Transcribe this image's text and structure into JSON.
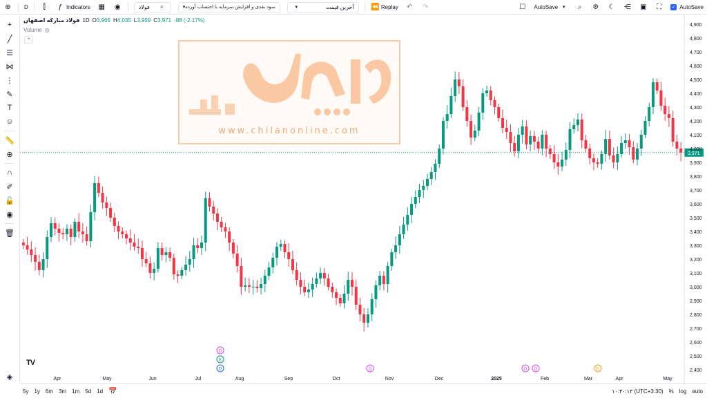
{
  "topbar": {
    "symbol_short": "D",
    "indicators_label": "Indicators",
    "symbol_search": "فولاد",
    "strategy_dropdown": "سود نقدی و افزایش سرمایه با احتساب آورده",
    "price_type_dropdown": "آخرین قیمت",
    "replay_label": "Replay",
    "autosave_label": "AutoSave",
    "autosave_right_label": "AutoSave"
  },
  "legend": {
    "symbol_name": "فولاد مبارکه اصفهان",
    "timeframe": "1D",
    "open_key": "O",
    "open": "3,965",
    "high_key": "H",
    "high": "4,035",
    "low_key": "L",
    "low": "3,959",
    "close_key": "C",
    "close": "3,971",
    "change": "-88 (-2.17%)",
    "volume_label": "Volume"
  },
  "watermark": {
    "url": "www.chilanonline.com"
  },
  "price_axis": {
    "ticks": [
      "4,900",
      "4,800",
      "4,700",
      "4,600",
      "4,500",
      "4,400",
      "4,300",
      "4,200",
      "4,100",
      "4,000",
      "3,900",
      "3,800",
      "3,700",
      "3,600",
      "3,500",
      "3,400",
      "3,300",
      "3,200",
      "3,100",
      "3,000",
      "2,900",
      "2,800",
      "2,700",
      "2,600",
      "2,500",
      "2,400"
    ],
    "last_price_label": "3,971"
  },
  "time_axis": {
    "ticks": [
      "Apr",
      "May",
      "Jun",
      "Jul",
      "Aug",
      "Sep",
      "Oct",
      "Nov",
      "Dec",
      "2025",
      "Feb",
      "Mar",
      "Apr",
      "May"
    ]
  },
  "bottombar": {
    "ranges": [
      "5y",
      "1y",
      "6m",
      "3m",
      "1m",
      "5d",
      "1d"
    ],
    "clock": "۱۰:۴۰:۱۳ (UTC+3:30)",
    "percent_label": "%",
    "log_label": "log",
    "auto_label": "auto"
  },
  "colors": {
    "up": "#089981",
    "down": "#f23645",
    "last_price_line": "#089981"
  },
  "chart_data": {
    "type": "candlestick",
    "ylim": [
      2400,
      4900
    ],
    "last_price": 3971,
    "series": [
      {
        "name": "",
        "values": [
          3300,
          3270,
          3230,
          3180,
          3120,
          3200,
          3360,
          3460,
          3420,
          3390,
          3380,
          3420,
          3360,
          3470,
          3400,
          3380,
          3330,
          3540,
          3750,
          3680,
          3610,
          3570,
          3500,
          3440,
          3400,
          3380,
          3350,
          3320,
          3290,
          3280,
          3200,
          3170,
          3100,
          3130,
          3280,
          3230,
          3250,
          3210,
          3090,
          3080,
          3120,
          3160,
          3200,
          3300,
          3280,
          3320,
          3640,
          3580,
          3530,
          3470,
          3430,
          3400,
          3320,
          3240,
          3150,
          3000,
          3010,
          3000,
          3000,
          2990,
          3020,
          3080,
          3140,
          3210,
          3290,
          3310,
          3250,
          3200,
          3120,
          3050,
          3000,
          2960,
          2980,
          3020,
          3060,
          3100,
          3060,
          3000,
          2960,
          2920,
          2880,
          2950,
          3050,
          3000,
          2870,
          2800,
          2740,
          2800,
          2910,
          3010,
          3080,
          3020,
          3150,
          3250,
          3300,
          3380,
          3450,
          3520,
          3600,
          3650,
          3700,
          3730,
          3780,
          3830,
          3890,
          4000,
          4200,
          4250,
          4380,
          4500,
          4450,
          4300,
          4200,
          4080,
          4130,
          4260,
          4400,
          4420,
          4350,
          4300,
          4220,
          4150,
          4120,
          4040,
          3980,
          4100,
          4160,
          4030,
          4090,
          4050,
          4000,
          4100,
          4000,
          3960,
          3900,
          3870,
          3920,
          3990,
          4140,
          4170,
          4210,
          4060,
          4000,
          3930,
          3900,
          3890,
          3960,
          4070,
          3950,
          3900,
          3960,
          4040,
          4060,
          4010,
          3920,
          4000,
          4100,
          4200,
          4300,
          4480,
          4420,
          4310,
          4250,
          4220,
          4050,
          4000,
          3971
        ]
      }
    ],
    "events": [
      "D",
      "E",
      "D",
      "D",
      "D",
      "D",
      "E"
    ]
  }
}
